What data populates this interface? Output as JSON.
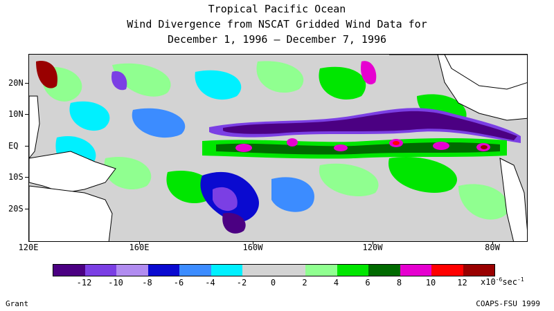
{
  "title": {
    "line1": "Tropical Pacific Ocean",
    "line2": "Wind Divergence from NSCAT Gridded Wind Data for",
    "line3": "December 1, 1996 – December 7, 1996"
  },
  "axes": {
    "lat_labels": [
      "20N",
      "10N",
      "EQ",
      "10S",
      "20S"
    ],
    "lon_labels": [
      "120E",
      "160E",
      "160W",
      "120W",
      "80W"
    ]
  },
  "legend": {
    "colors": [
      "#4b0082",
      "#7b3fe4",
      "#b18cf0",
      "#0a0ad0",
      "#3c8cff",
      "#00f0ff",
      "#d3d3d3",
      "#d3d3d3",
      "#90ff90",
      "#00e600",
      "#006a00",
      "#e600d0",
      "#ff0000",
      "#990000"
    ],
    "tick_labels": [
      "-12",
      "-10",
      "-8",
      "-6",
      "-4",
      "-2",
      "0",
      "2",
      "4",
      "6",
      "8",
      "10",
      "12"
    ],
    "units_prefix": "x10",
    "units_exp": "-6",
    "units_suffix": "sec",
    "units_exp2": "-1"
  },
  "credits": {
    "left": "Grant",
    "right": "COAPS-FSU 1999"
  }
}
